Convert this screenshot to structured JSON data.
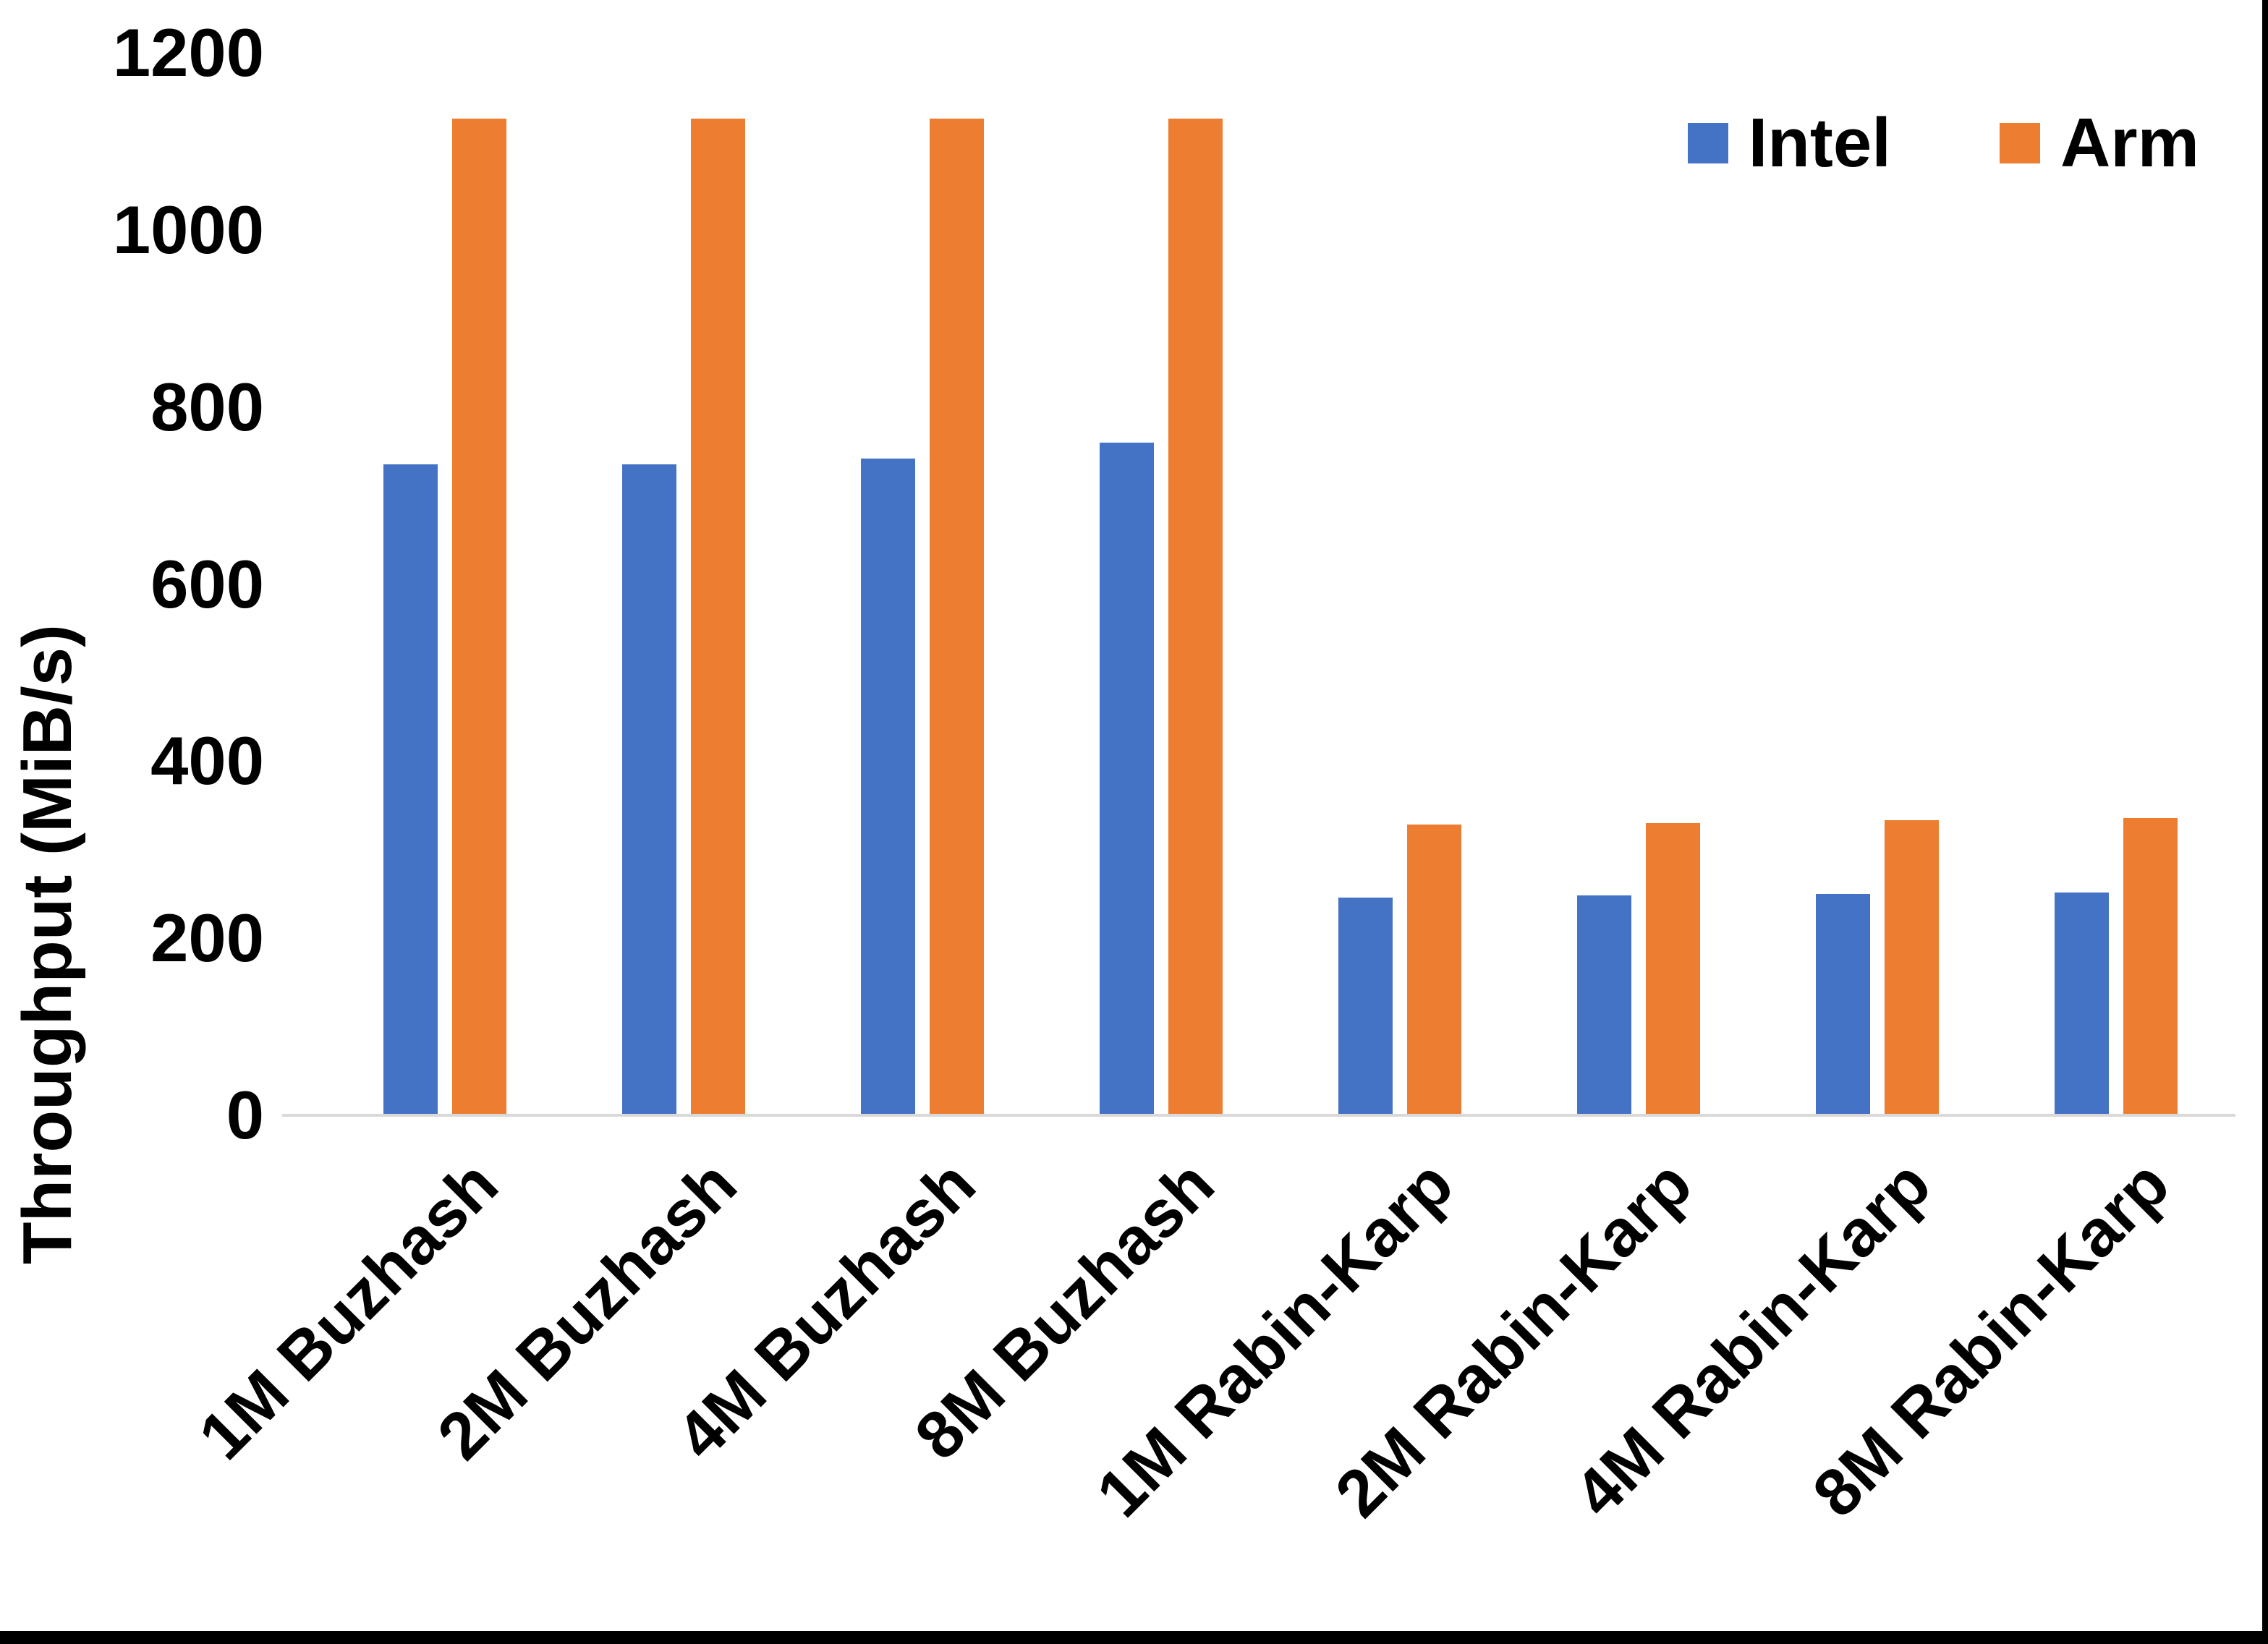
{
  "window": {
    "background": "#FFFFFF",
    "frame_color": "#000000"
  },
  "colors": {
    "intel_blue": "#4472C4",
    "arm_orange": "#ED7D31",
    "axis_line": "#D9D9D9",
    "text": "#000000"
  },
  "chart_data": {
    "type": "bar",
    "title": "",
    "xlabel": "",
    "ylabel": "Throughput (MiB/s)",
    "ylim": [
      0,
      1200
    ],
    "yticks": [
      0,
      200,
      400,
      600,
      800,
      1000,
      1200
    ],
    "grid": false,
    "legend_position": "top-right",
    "categories": [
      "1M Buzhash",
      "2M Buzhash",
      "4M Buzhash",
      "8M Buzhash",
      "1M Rabin-Karp",
      "2M Rabin-Karp",
      "4M Rabin-Karp",
      "8M Rabin-Karp"
    ],
    "series": [
      {
        "name": "Intel",
        "color": "#4472C4",
        "values": [
          735,
          735,
          742,
          760,
          246,
          248,
          250,
          252
        ]
      },
      {
        "name": "Arm",
        "color": "#ED7D31",
        "values": [
          1126,
          1126,
          1126,
          1126,
          328,
          330,
          333,
          336
        ]
      }
    ]
  }
}
